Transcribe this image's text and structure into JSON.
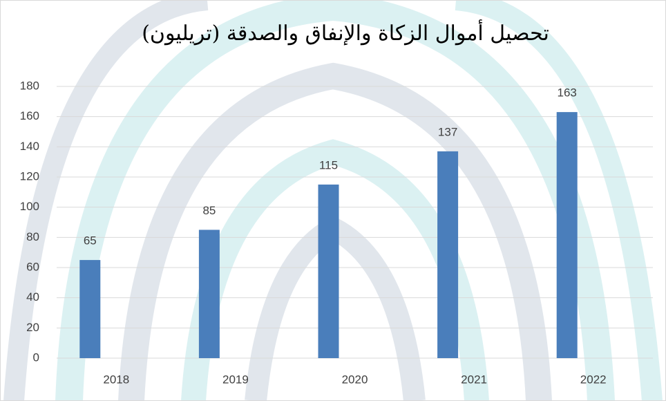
{
  "chart_data": {
    "type": "bar",
    "title": "تحصيل أموال الزكاة والإنفاق والصدقة (تريليون)",
    "categories": [
      "2018",
      "2019",
      "2020",
      "2021",
      "2022"
    ],
    "values": [
      65,
      85,
      115,
      137,
      163
    ],
    "color": "#4a7ebb",
    "ylim": [
      0,
      180
    ],
    "yticks": [
      0,
      20,
      40,
      60,
      80,
      100,
      120,
      140,
      160,
      180
    ],
    "grid": true
  }
}
